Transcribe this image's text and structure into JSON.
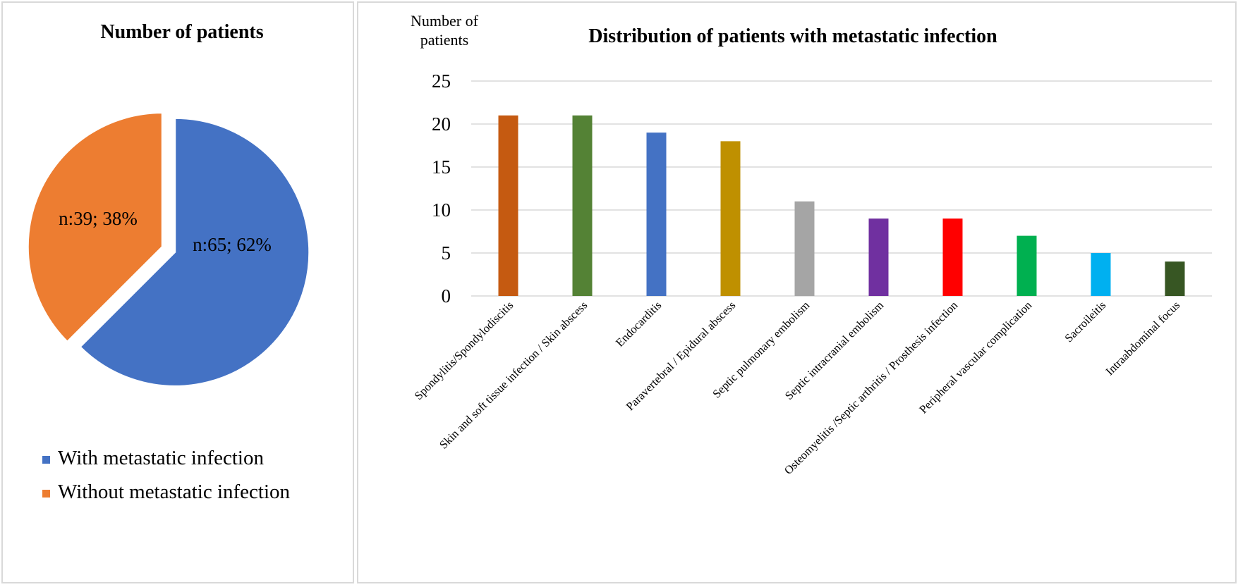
{
  "chart_data": [
    {
      "type": "pie",
      "title": "Number of patients",
      "series": [
        {
          "name": "With metastatic infection",
          "value": 65,
          "percent": 62,
          "label": "n:65; 62%",
          "color": "#4472C4"
        },
        {
          "name": "Without metastatic infection",
          "value": 39,
          "percent": 38,
          "label": "n:39; 38%",
          "color": "#ED7D31"
        }
      ],
      "legend_position": "bottom"
    },
    {
      "type": "bar",
      "title": "Distribution of patients with metastatic infection",
      "ylabel": "Number of patients",
      "ylim": [
        0,
        25
      ],
      "yticks": [
        0,
        5,
        10,
        15,
        20,
        25
      ],
      "grid": true,
      "categories": [
        "Spondylitis/Spondylodiscitis",
        "Skin and soft tissue infection / Skin abscess",
        "Endocarditis",
        "Paravertebral / Epidural abscess",
        "Septic pulmonary embolism",
        "Septic intracranial embolism",
        "Osteomyelitis /Septic arthritis / Prosthesis infection",
        "Peripheral vascular complication",
        "Sacroileitis",
        "Intraabdominal focus"
      ],
      "values": [
        21,
        21,
        19,
        18,
        11,
        9,
        9,
        7,
        5,
        4
      ],
      "colors": [
        "#C55A11",
        "#548235",
        "#4472C4",
        "#BF9000",
        "#A5A5A5",
        "#7030A0",
        "#FF0000",
        "#00B050",
        "#00B0F0",
        "#375623"
      ]
    }
  ]
}
